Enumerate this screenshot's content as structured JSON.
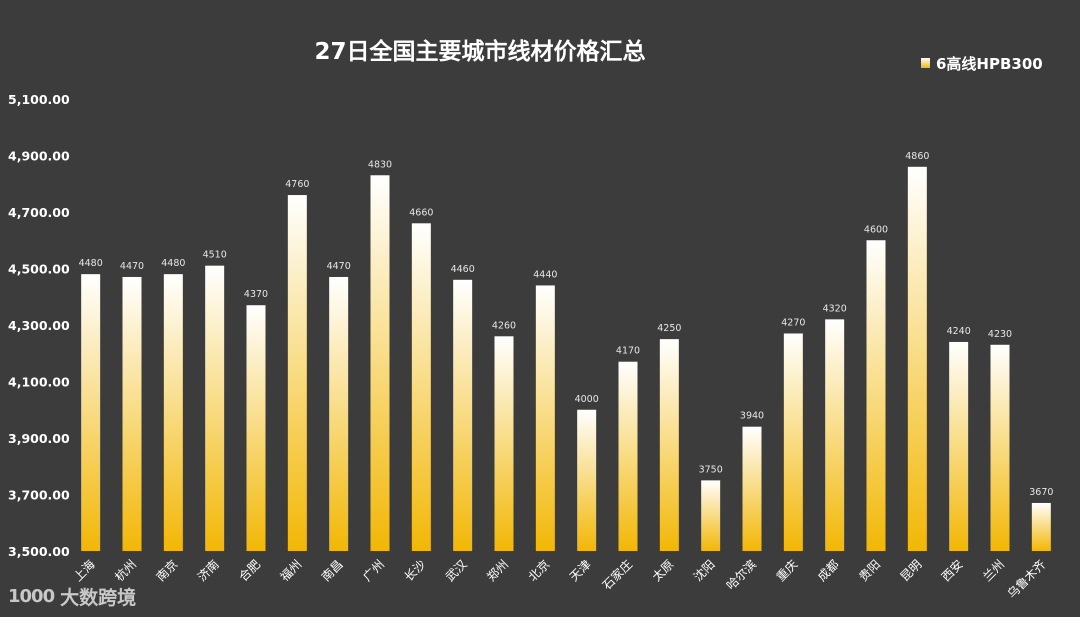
{
  "chart_data": {
    "type": "bar",
    "title": "27日全国主要城市线材价格汇总",
    "legend": {
      "label": "6高线HPB300",
      "position": "top-right"
    },
    "categories": [
      "上海",
      "杭州",
      "南京",
      "济南",
      "合肥",
      "福州",
      "南昌",
      "广州",
      "长沙",
      "武汉",
      "郑州",
      "北京",
      "天津",
      "石家庄",
      "太原",
      "沈阳",
      "哈尔滨",
      "重庆",
      "成都",
      "贵阳",
      "昆明",
      "西安",
      "兰州",
      "乌鲁木齐"
    ],
    "series": [
      {
        "name": "6高线HPB300",
        "values": [
          4480,
          4470,
          4480,
          4510,
          4370,
          4760,
          4470,
          4830,
          4660,
          4460,
          4260,
          4440,
          4000,
          4170,
          4250,
          3750,
          3940,
          4270,
          4320,
          4600,
          4860,
          4240,
          4230,
          3670
        ],
        "labels": [
          "4480",
          "4470",
          "4480",
          "4510",
          "4370",
          "4760",
          "4470",
          "4830",
          "4660",
          "4460",
          "4260",
          "4440",
          "4000",
          "4170",
          "4250",
          "3750",
          "3940",
          "4270",
          "4320",
          "4600",
          "4860",
          "4240",
          "4230",
          "3670"
        ]
      }
    ],
    "yticks": [
      3500,
      3700,
      3900,
      4100,
      4300,
      4500,
      4700,
      4900,
      5100
    ],
    "ytick_labels": [
      "3,500.00",
      "3,700.00",
      "3,900.00",
      "4,100.00",
      "4,300.00",
      "4,500.00",
      "4,700.00",
      "4,900.00",
      "5,100.00"
    ],
    "ylim": [
      3500,
      5100
    ],
    "grid": false,
    "colors": {
      "bar_top": "#ffffff",
      "bar_bottom": "#f2b705",
      "background": "#3c3c3c"
    }
  },
  "watermark": {
    "logo": "1000",
    "text": "大数跨境"
  }
}
